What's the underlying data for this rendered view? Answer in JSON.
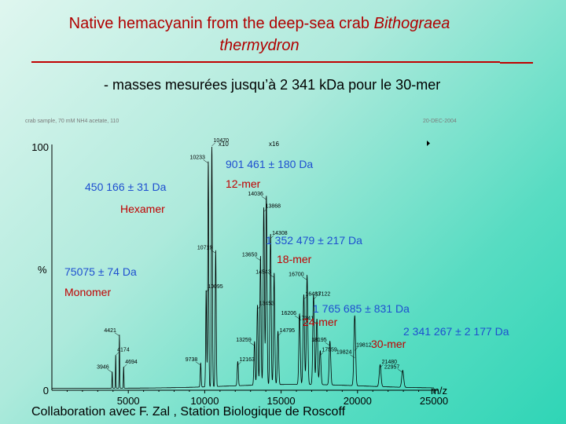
{
  "slide": {
    "title_line1": "Native hemacyanin from the deep-sea crab ",
    "title_species": "Bithograea",
    "title_line2": "thermydron",
    "subtitle": "- masses mesurées jusqu’à 2 341 kDa pour le 30-mer",
    "footer": "Collaboration avec F. Zal , Station Biologique de Roscoff",
    "header_left": "crab sample, 70 mM NH4 acetate, 110 ",
    "header_right": "20-DEC-2004",
    "accent_color": "#c00000"
  },
  "chart_data": {
    "type": "line",
    "title": "",
    "xlabel": "m/z",
    "ylabel": "%",
    "xlim": [
      0,
      25000
    ],
    "ylim": [
      0,
      100
    ],
    "x_ticks": [
      "5000",
      "10000",
      "15000",
      "20000",
      "25000"
    ],
    "y_ticks": [
      "0",
      "100"
    ],
    "magnification_marks": [
      {
        "label": "x10",
        "x": 10900
      },
      {
        "label": "x16",
        "x": 14200
      }
    ],
    "peaks": [
      {
        "mz": 3946,
        "intensity": 7,
        "label": "3946"
      },
      {
        "mz": 4174,
        "intensity": 14,
        "label": "4174"
      },
      {
        "mz": 4421,
        "intensity": 22,
        "label": "4421"
      },
      {
        "mz": 4694,
        "intensity": 9,
        "label": "4694"
      },
      {
        "mz": 9738,
        "intensity": 10,
        "label": "9738"
      },
      {
        "mz": 10095,
        "intensity": 40,
        "label": "10095"
      },
      {
        "mz": 10233,
        "intensity": 93,
        "label": "10233"
      },
      {
        "mz": 10470,
        "intensity": 100,
        "label": "10470"
      },
      {
        "mz": 10719,
        "intensity": 56,
        "label": "10719"
      },
      {
        "mz": 12163,
        "intensity": 10,
        "label": "12163"
      },
      {
        "mz": 13259,
        "intensity": 18,
        "label": "13259"
      },
      {
        "mz": 13453,
        "intensity": 33,
        "label": "13453"
      },
      {
        "mz": 13650,
        "intensity": 53,
        "label": "13650"
      },
      {
        "mz": 13868,
        "intensity": 73,
        "label": "13868"
      },
      {
        "mz": 14036,
        "intensity": 78,
        "label": "14036"
      },
      {
        "mz": 14308,
        "intensity": 62,
        "label": "14308"
      },
      {
        "mz": 14543,
        "intensity": 46,
        "label": "14543"
      },
      {
        "mz": 14795,
        "intensity": 22,
        "label": "14795"
      },
      {
        "mz": 16206,
        "intensity": 29,
        "label": "16206"
      },
      {
        "mz": 16483,
        "intensity": 37,
        "label": "16483"
      },
      {
        "mz": 16700,
        "intensity": 45,
        "label": "16700"
      },
      {
        "mz": 17122,
        "intensity": 37,
        "label": "17122"
      },
      {
        "mz": 17341,
        "intensity": 27,
        "label": "17341"
      },
      {
        "mz": 17559,
        "intensity": 14,
        "label": "17559"
      },
      {
        "mz": 18195,
        "intensity": 18,
        "label": "18195"
      },
      {
        "mz": 19812,
        "intensity": 16,
        "label": "19812"
      },
      {
        "mz": 19824,
        "intensity": 13,
        "label": "19824"
      },
      {
        "mz": 21480,
        "intensity": 9,
        "label": "21480"
      },
      {
        "mz": 22957,
        "intensity": 7,
        "label": "22957"
      }
    ],
    "annotations": [
      {
        "mass": "450 166 ± 31 Da",
        "species": "Hexamer"
      },
      {
        "mass": "901 461 ± 180 Da",
        "species": "12-mer"
      },
      {
        "mass": "75075 ± 74 Da",
        "species": "Monomer"
      },
      {
        "mass": "1 352 479 ± 217 Da",
        "species": "18-mer"
      },
      {
        "mass": "1 765 685 ± 831 Da",
        "species": "24-mer"
      },
      {
        "mass": "2 341 267  ± 2 177 Da",
        "species": "30-mer"
      }
    ]
  }
}
